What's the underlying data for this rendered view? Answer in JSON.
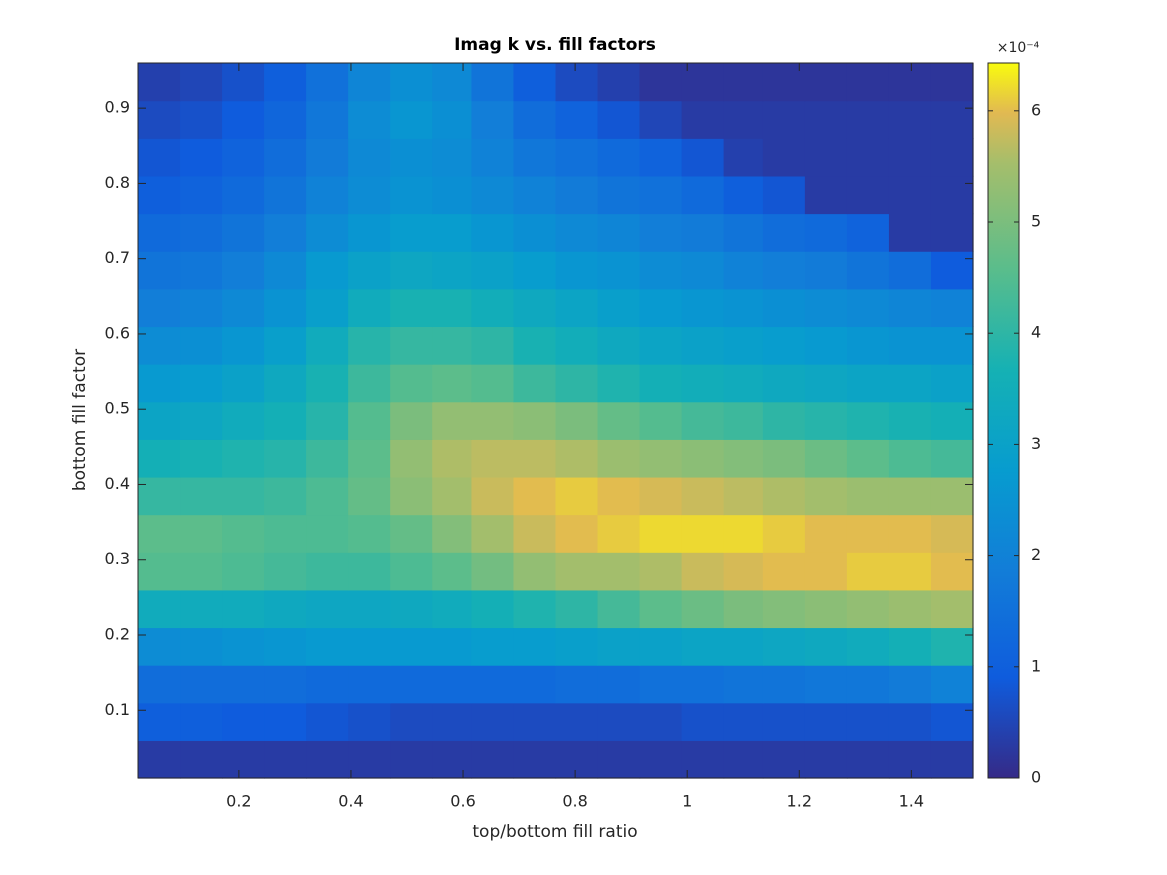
{
  "chart_data": {
    "type": "heatmap",
    "title": "Imag k vs. fill factors",
    "xlabel": "top/bottom fill ratio",
    "ylabel": "bottom fill factor",
    "colorbar_exponent_label": "×10⁻⁴",
    "colormap": "parula",
    "x": [
      0.06,
      0.13,
      0.21,
      0.28,
      0.36,
      0.43,
      0.51,
      0.58,
      0.65,
      0.73,
      0.8,
      0.88,
      0.95,
      1.03,
      1.1,
      1.17,
      1.25,
      1.32,
      1.4,
      1.47
    ],
    "y": [
      0.035,
      0.085,
      0.135,
      0.185,
      0.235,
      0.285,
      0.335,
      0.385,
      0.435,
      0.485,
      0.535,
      0.585,
      0.635,
      0.685,
      0.735,
      0.785,
      0.835,
      0.885,
      0.935
    ],
    "z": [
      [
        0.3,
        0.3,
        0.3,
        0.3,
        0.3,
        0.3,
        0.3,
        0.3,
        0.3,
        0.3,
        0.3,
        0.3,
        0.3,
        0.3,
        0.3,
        0.3,
        0.3,
        0.3,
        0.3,
        0.3
      ],
      [
        1.0,
        1.0,
        0.9,
        0.9,
        0.8,
        0.7,
        0.6,
        0.6,
        0.6,
        0.6,
        0.6,
        0.6,
        0.6,
        0.7,
        0.7,
        0.7,
        0.7,
        0.7,
        0.7,
        0.8
      ],
      [
        1.4,
        1.4,
        1.4,
        1.4,
        1.3,
        1.3,
        1.3,
        1.3,
        1.3,
        1.3,
        1.4,
        1.4,
        1.5,
        1.5,
        1.6,
        1.6,
        1.7,
        1.7,
        1.8,
        2.0
      ],
      [
        2.3,
        2.4,
        2.5,
        2.6,
        2.7,
        2.7,
        2.7,
        2.7,
        2.8,
        2.8,
        2.9,
        3.0,
        3.0,
        3.1,
        3.1,
        3.2,
        3.3,
        3.4,
        3.6,
        3.8
      ],
      [
        3.4,
        3.4,
        3.4,
        3.3,
        3.2,
        3.2,
        3.3,
        3.4,
        3.6,
        3.8,
        4.0,
        4.3,
        4.6,
        4.8,
        5.0,
        5.1,
        5.2,
        5.3,
        5.4,
        5.5
      ],
      [
        4.5,
        4.5,
        4.4,
        4.3,
        4.2,
        4.2,
        4.4,
        4.6,
        4.9,
        5.3,
        5.5,
        5.5,
        5.6,
        5.8,
        5.9,
        6.0,
        6.0,
        6.1,
        6.1,
        6.0
      ],
      [
        4.6,
        4.6,
        4.5,
        4.4,
        4.4,
        4.5,
        4.7,
        5.1,
        5.5,
        5.8,
        6.0,
        6.1,
        6.2,
        6.2,
        6.2,
        6.1,
        6.0,
        6.0,
        6.0,
        5.9
      ],
      [
        4.1,
        4.1,
        4.1,
        4.2,
        4.4,
        4.7,
        5.2,
        5.5,
        5.8,
        6.0,
        6.1,
        6.0,
        5.9,
        5.8,
        5.7,
        5.6,
        5.5,
        5.4,
        5.4,
        5.4
      ],
      [
        3.6,
        3.7,
        3.8,
        3.9,
        4.2,
        4.6,
        5.3,
        5.6,
        5.7,
        5.7,
        5.6,
        5.4,
        5.3,
        5.2,
        5.1,
        5.0,
        4.8,
        4.6,
        4.4,
        4.3
      ],
      [
        3.1,
        3.2,
        3.4,
        3.6,
        3.9,
        4.5,
        5.0,
        5.3,
        5.3,
        5.2,
        5.0,
        4.7,
        4.5,
        4.3,
        4.2,
        4.0,
        3.9,
        3.8,
        3.7,
        3.6
      ],
      [
        2.7,
        2.8,
        3.0,
        3.3,
        3.7,
        4.2,
        4.5,
        4.6,
        4.5,
        4.2,
        4.0,
        3.8,
        3.6,
        3.5,
        3.4,
        3.3,
        3.2,
        3.1,
        3.1,
        3.0
      ],
      [
        2.3,
        2.4,
        2.6,
        2.9,
        3.4,
        3.9,
        4.1,
        4.1,
        4.0,
        3.7,
        3.5,
        3.3,
        3.1,
        3.0,
        2.9,
        2.8,
        2.7,
        2.6,
        2.5,
        2.5
      ],
      [
        1.9,
        2.0,
        2.2,
        2.5,
        2.9,
        3.4,
        3.7,
        3.7,
        3.5,
        3.3,
        3.1,
        2.9,
        2.7,
        2.6,
        2.5,
        2.4,
        2.3,
        2.2,
        2.1,
        2.0
      ],
      [
        1.6,
        1.7,
        1.9,
        2.2,
        2.7,
        3.0,
        3.2,
        3.1,
        3.0,
        2.8,
        2.6,
        2.5,
        2.3,
        2.2,
        2.0,
        1.9,
        1.8,
        1.6,
        1.4,
        0.9
      ],
      [
        1.3,
        1.4,
        1.6,
        1.9,
        2.3,
        2.6,
        2.8,
        2.8,
        2.6,
        2.4,
        2.2,
        2.1,
        1.9,
        1.8,
        1.6,
        1.4,
        1.3,
        1.1,
        0.3,
        0.3
      ],
      [
        1.0,
        1.1,
        1.3,
        1.6,
        2.0,
        2.3,
        2.5,
        2.4,
        2.2,
        2.0,
        1.8,
        1.6,
        1.5,
        1.3,
        1.0,
        0.8,
        0.3,
        0.3,
        0.3,
        0.3
      ],
      [
        0.8,
        0.9,
        1.1,
        1.4,
        1.8,
        2.2,
        2.4,
        2.3,
        2.0,
        1.7,
        1.5,
        1.3,
        1.1,
        0.8,
        0.4,
        0.3,
        0.3,
        0.3,
        0.3,
        0.3
      ],
      [
        0.6,
        0.7,
        0.9,
        1.2,
        1.7,
        2.3,
        2.6,
        2.4,
        1.9,
        1.4,
        1.1,
        0.8,
        0.5,
        0.3,
        0.3,
        0.3,
        0.3,
        0.3,
        0.3,
        0.3
      ],
      [
        0.4,
        0.5,
        0.7,
        1.0,
        1.5,
        2.1,
        2.4,
        2.2,
        1.6,
        1.0,
        0.6,
        0.4,
        0.2,
        0.2,
        0.2,
        0.2,
        0.2,
        0.2,
        0.2,
        0.2
      ]
    ],
    "xlim": [
      0.02,
      1.51
    ],
    "xticks": [
      0.2,
      0.4,
      0.6,
      0.8,
      1,
      1.2,
      1.4
    ],
    "ylim": [
      0.01,
      0.96
    ],
    "yticks": [
      0.1,
      0.2,
      0.3,
      0.4,
      0.5,
      0.6,
      0.7,
      0.8,
      0.9
    ],
    "clim": [
      0,
      6.43
    ],
    "cticks": [
      0,
      1,
      2,
      3,
      4,
      5,
      6
    ]
  }
}
